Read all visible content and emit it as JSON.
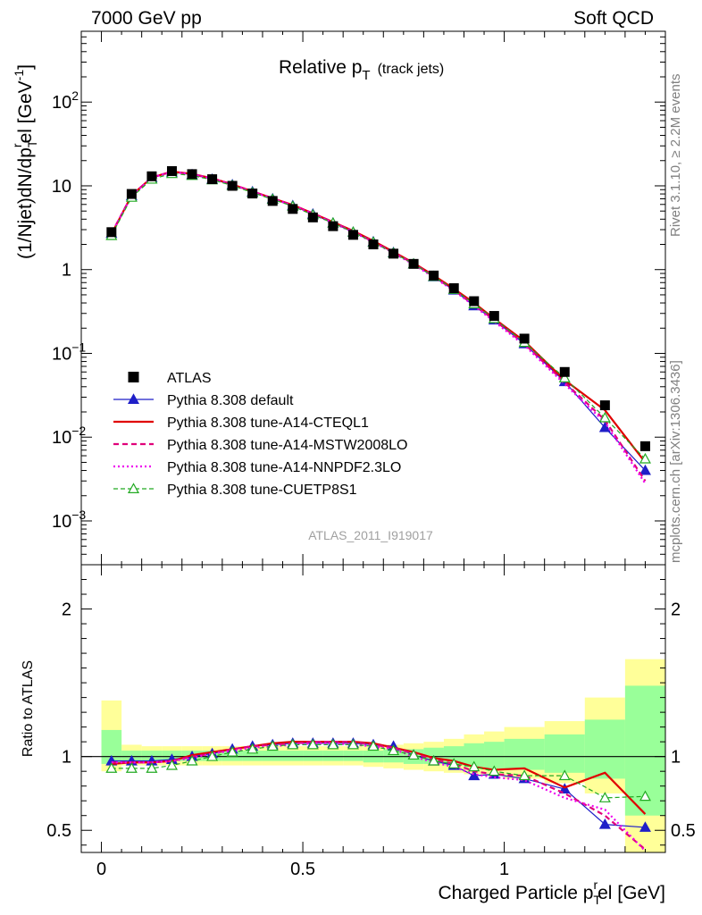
{
  "header": {
    "left": "7000 GeV pp",
    "right": "Soft QCD"
  },
  "side_labels": {
    "rivet": "Rivet 3.1.10, ≥ 2.2M events",
    "mcplots": "mcplots.cern.ch [arXiv:1306.3436]"
  },
  "chart_data": [
    {
      "type": "line",
      "panel": "main",
      "title": "Relative p",
      "title_sub": "T",
      "title_suffix": "(track jets)",
      "ylabel_parts": {
        "a": "(1/Njet)dN/dp",
        "b": "T",
        "c": "r",
        "d": "el [GeV",
        "e": "-1",
        "f": "]"
      },
      "xlim": [
        -0.05,
        1.4
      ],
      "ylim": [
        0.0003,
        700
      ],
      "yscale": "log",
      "yticks": [
        {
          "v": 100,
          "base": "10",
          "exp": "2"
        },
        {
          "v": 10,
          "base": "10",
          "exp": ""
        },
        {
          "v": 1,
          "base": "1",
          "exp": ""
        },
        {
          "v": 0.1,
          "base": "10",
          "exp": "−1"
        },
        {
          "v": 0.01,
          "base": "10",
          "exp": "−2"
        },
        {
          "v": 0.001,
          "base": "10",
          "exp": "−3"
        }
      ],
      "legend_position": "bottom-left",
      "watermark": "ATLAS_2011_I919017",
      "x": [
        0.025,
        0.075,
        0.125,
        0.175,
        0.225,
        0.275,
        0.325,
        0.375,
        0.425,
        0.475,
        0.525,
        0.575,
        0.625,
        0.675,
        0.725,
        0.775,
        0.825,
        0.875,
        0.925,
        0.975,
        1.05,
        1.15,
        1.25,
        1.35
      ],
      "series": [
        {
          "name": "ATLAS",
          "style": "data",
          "color": "#000000",
          "values": [
            2.8,
            8.0,
            13.0,
            15.0,
            13.8,
            12.0,
            10.0,
            8.1,
            6.6,
            5.3,
            4.2,
            3.3,
            2.6,
            2.0,
            1.55,
            1.17,
            0.85,
            0.6,
            0.42,
            0.28,
            0.15,
            0.06,
            0.024,
            0.0078
          ]
        },
        {
          "name": "Pythia 8.308 default",
          "style": "blue",
          "color": "#1f1fc8",
          "values": [
            2.7,
            7.6,
            12.5,
            14.6,
            13.6,
            12.0,
            10.3,
            8.5,
            7.0,
            5.8,
            4.6,
            3.6,
            2.8,
            2.15,
            1.6,
            1.17,
            0.82,
            0.57,
            0.37,
            0.25,
            0.13,
            0.046,
            0.013,
            0.004
          ]
        },
        {
          "name": "Pythia 8.308 tune-A14-CTEQL1",
          "style": "red",
          "color": "#e00000",
          "values": [
            2.65,
            7.7,
            12.6,
            14.8,
            13.9,
            12.3,
            10.4,
            8.6,
            7.1,
            5.9,
            4.7,
            3.7,
            2.9,
            2.2,
            1.63,
            1.2,
            0.85,
            0.59,
            0.4,
            0.26,
            0.14,
            0.048,
            0.021,
            0.005
          ]
        },
        {
          "name": "Pythia 8.308 tune-A14-MSTW2008LO",
          "style": "magenta-dash",
          "color": "#e0007a",
          "values": [
            2.7,
            7.7,
            12.6,
            14.7,
            13.8,
            12.2,
            10.4,
            8.6,
            7.1,
            5.9,
            4.7,
            3.7,
            2.85,
            2.15,
            1.6,
            1.18,
            0.83,
            0.57,
            0.38,
            0.25,
            0.13,
            0.045,
            0.016,
            0.003
          ]
        },
        {
          "name": "Pythia 8.308 tune-A14-NNPDF2.3LO",
          "style": "magenta-dot",
          "color": "#ee00ee",
          "values": [
            2.7,
            7.6,
            12.5,
            14.7,
            13.7,
            12.2,
            10.3,
            8.5,
            7.0,
            5.8,
            4.6,
            3.6,
            2.8,
            2.12,
            1.58,
            1.15,
            0.81,
            0.56,
            0.37,
            0.24,
            0.125,
            0.043,
            0.015,
            0.0028
          ]
        },
        {
          "name": "Pythia 8.308 tune-CUETP8S1",
          "style": "green",
          "color": "#22aa22",
          "values": [
            2.55,
            7.3,
            12.0,
            14.0,
            13.3,
            11.8,
            10.1,
            8.3,
            6.9,
            5.7,
            4.5,
            3.6,
            2.8,
            2.12,
            1.58,
            1.17,
            0.83,
            0.58,
            0.39,
            0.26,
            0.135,
            0.051,
            0.017,
            0.0055
          ]
        }
      ]
    },
    {
      "type": "line",
      "panel": "ratio",
      "ylabel": "Ratio to ATLAS",
      "xlabel_parts": {
        "a": "Charged Particle p",
        "b": "T",
        "c": "r",
        "d": "el [GeV]"
      },
      "xlim": [
        -0.05,
        1.4
      ],
      "ylim": [
        0.35,
        2.3
      ],
      "yticks": [
        "0.5",
        "1",
        "2"
      ],
      "xticks": [
        "0",
        "0.5",
        "1"
      ],
      "bins": [
        [
          0,
          0.05
        ],
        [
          0.05,
          0.1
        ],
        [
          0.1,
          0.15
        ],
        [
          0.15,
          0.2
        ],
        [
          0.2,
          0.25
        ],
        [
          0.25,
          0.3
        ],
        [
          0.3,
          0.35
        ],
        [
          0.35,
          0.4
        ],
        [
          0.4,
          0.45
        ],
        [
          0.45,
          0.5
        ],
        [
          0.5,
          0.55
        ],
        [
          0.55,
          0.6
        ],
        [
          0.6,
          0.65
        ],
        [
          0.65,
          0.7
        ],
        [
          0.7,
          0.75
        ],
        [
          0.75,
          0.8
        ],
        [
          0.8,
          0.85
        ],
        [
          0.85,
          0.9
        ],
        [
          0.9,
          0.95
        ],
        [
          0.95,
          1.0
        ],
        [
          1.0,
          1.1
        ],
        [
          1.1,
          1.2
        ],
        [
          1.2,
          1.3
        ],
        [
          1.3,
          1.4
        ]
      ],
      "band_yellow": [
        [
          0.9,
          1.38
        ],
        [
          0.94,
          1.08
        ],
        [
          0.94,
          1.07
        ],
        [
          0.94,
          1.07
        ],
        [
          0.94,
          1.07
        ],
        [
          0.94,
          1.07
        ],
        [
          0.94,
          1.07
        ],
        [
          0.94,
          1.07
        ],
        [
          0.94,
          1.07
        ],
        [
          0.94,
          1.07
        ],
        [
          0.94,
          1.07
        ],
        [
          0.94,
          1.07
        ],
        [
          0.94,
          1.07
        ],
        [
          0.93,
          1.07
        ],
        [
          0.92,
          1.08
        ],
        [
          0.91,
          1.09
        ],
        [
          0.9,
          1.1
        ],
        [
          0.89,
          1.12
        ],
        [
          0.88,
          1.15
        ],
        [
          0.87,
          1.17
        ],
        [
          0.85,
          1.2
        ],
        [
          0.82,
          1.24
        ],
        [
          0.75,
          1.4
        ],
        [
          0.35,
          1.66
        ]
      ],
      "band_green": [
        [
          0.95,
          1.18
        ],
        [
          0.97,
          1.04
        ],
        [
          0.97,
          1.04
        ],
        [
          0.97,
          1.04
        ],
        [
          0.97,
          1.04
        ],
        [
          0.97,
          1.04
        ],
        [
          0.97,
          1.04
        ],
        [
          0.97,
          1.04
        ],
        [
          0.97,
          1.04
        ],
        [
          0.97,
          1.04
        ],
        [
          0.97,
          1.04
        ],
        [
          0.97,
          1.04
        ],
        [
          0.97,
          1.04
        ],
        [
          0.96,
          1.04
        ],
        [
          0.96,
          1.05
        ],
        [
          0.95,
          1.05
        ],
        [
          0.95,
          1.06
        ],
        [
          0.94,
          1.07
        ],
        [
          0.93,
          1.09
        ],
        [
          0.92,
          1.1
        ],
        [
          0.91,
          1.12
        ],
        [
          0.89,
          1.15
        ],
        [
          0.85,
          1.25
        ],
        [
          0.6,
          1.48
        ]
      ],
      "x": [
        0.025,
        0.075,
        0.125,
        0.175,
        0.225,
        0.275,
        0.325,
        0.375,
        0.425,
        0.475,
        0.525,
        0.575,
        0.625,
        0.675,
        0.725,
        0.775,
        0.825,
        0.875,
        0.925,
        0.975,
        1.05,
        1.15,
        1.25,
        1.35
      ],
      "series": [
        {
          "name": "Pythia 8.308 default",
          "style": "blue",
          "color": "#1f1fc8",
          "values": [
            0.97,
            0.97,
            0.97,
            0.98,
            1.0,
            1.02,
            1.05,
            1.07,
            1.08,
            1.09,
            1.09,
            1.09,
            1.09,
            1.08,
            1.07,
            1.01,
            0.97,
            0.94,
            0.87,
            0.88,
            0.85,
            0.78,
            0.54,
            0.52
          ]
        },
        {
          "name": "Pythia 8.308 tune-A14-CTEQL1",
          "style": "red",
          "color": "#e00000",
          "values": [
            0.95,
            0.96,
            0.96,
            0.97,
            1.01,
            1.03,
            1.05,
            1.07,
            1.09,
            1.1,
            1.1,
            1.1,
            1.1,
            1.09,
            1.06,
            1.03,
            0.99,
            0.97,
            0.93,
            0.91,
            0.92,
            0.79,
            0.89,
            0.61
          ]
        },
        {
          "name": "Pythia 8.308 tune-A14-MSTW2008LO",
          "style": "magenta-dash",
          "color": "#e0007a",
          "values": [
            0.96,
            0.96,
            0.96,
            0.97,
            1.0,
            1.02,
            1.05,
            1.07,
            1.08,
            1.09,
            1.1,
            1.1,
            1.1,
            1.08,
            1.06,
            1.02,
            0.98,
            0.95,
            0.9,
            0.88,
            0.87,
            0.75,
            0.6,
            0.37
          ]
        },
        {
          "name": "Pythia 8.308 tune-A14-NNPDF2.3LO",
          "style": "magenta-dot",
          "color": "#ee00ee",
          "values": [
            0.96,
            0.96,
            0.96,
            0.97,
            0.99,
            1.02,
            1.04,
            1.06,
            1.07,
            1.08,
            1.09,
            1.09,
            1.08,
            1.07,
            1.05,
            1.0,
            0.96,
            0.93,
            0.88,
            0.86,
            0.84,
            0.72,
            0.64,
            0.36
          ]
        },
        {
          "name": "Pythia 8.308 tune-CUETP8S1",
          "style": "green",
          "color": "#22aa22",
          "values": [
            0.92,
            0.92,
            0.92,
            0.94,
            0.97,
            1.0,
            1.03,
            1.05,
            1.07,
            1.08,
            1.08,
            1.08,
            1.08,
            1.07,
            1.04,
            1.01,
            0.97,
            0.95,
            0.93,
            0.9,
            0.87,
            0.87,
            0.72,
            0.73
          ]
        }
      ]
    }
  ]
}
